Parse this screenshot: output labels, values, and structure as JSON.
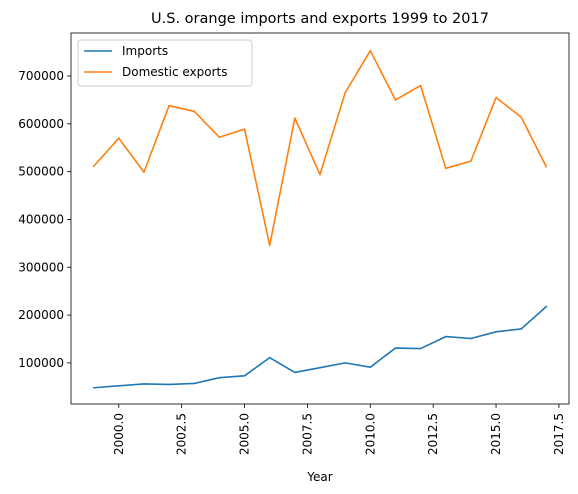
{
  "chart_data": {
    "type": "line",
    "title": "U.S. orange imports and exports 1999 to 2017",
    "xlabel": "Year",
    "ylabel": "",
    "xlim": [
      1998.1,
      2017.9
    ],
    "ylim": [
      14000,
      790000
    ],
    "grid": false,
    "legend_position": "top-left",
    "x_ticks": [
      2000.0,
      2002.5,
      2005.0,
      2007.5,
      2010.0,
      2012.5,
      2015.0,
      2017.5
    ],
    "x_tick_labels": [
      "2000.0",
      "2002.5",
      "2005.0",
      "2007.5",
      "2010.0",
      "2012.5",
      "2015.0",
      "2017.5"
    ],
    "y_ticks": [
      100000,
      200000,
      300000,
      400000,
      500000,
      600000,
      700000
    ],
    "y_tick_labels": [
      "100000",
      "200000",
      "300000",
      "400000",
      "500000",
      "600000",
      "700000"
    ],
    "x": [
      1999,
      2000,
      2001,
      2002,
      2003,
      2004,
      2005,
      2006,
      2007,
      2008,
      2009,
      2010,
      2011,
      2012,
      2013,
      2014,
      2015,
      2016,
      2017
    ],
    "series": [
      {
        "name": "Imports",
        "color": "#1f77b4",
        "values": [
          48000,
          52000,
          56000,
          55000,
          57000,
          69000,
          73000,
          111000,
          80000,
          90000,
          100000,
          91000,
          131000,
          130000,
          155000,
          151000,
          165000,
          171000,
          218000
        ]
      },
      {
        "name": "Domestic exports",
        "color": "#ff7f0e",
        "values": [
          511000,
          570000,
          499000,
          638000,
          626000,
          572000,
          589000,
          346000,
          612000,
          494000,
          665000,
          753000,
          650000,
          680000,
          507000,
          522000,
          655000,
          614000,
          510000
        ]
      }
    ]
  }
}
